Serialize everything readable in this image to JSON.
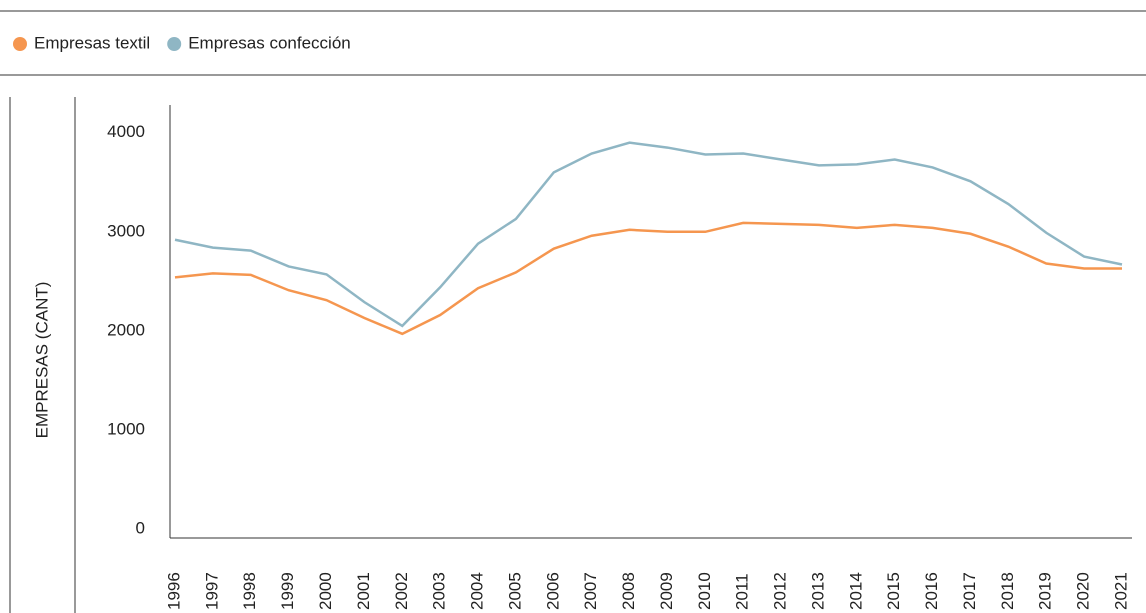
{
  "chart_data": {
    "type": "line",
    "y_label": "EMPRESAS (CANT)",
    "x": [
      "1996",
      "1997",
      "1998",
      "1999",
      "2000",
      "2001",
      "2002",
      "2003",
      "2004",
      "2005",
      "2006",
      "2007",
      "2008",
      "2009",
      "2010",
      "2011",
      "2012",
      "2013",
      "2014",
      "2015",
      "2016",
      "2017",
      "2018",
      "2019",
      "2020",
      "2021"
    ],
    "series": [
      {
        "name": "Empresas textil",
        "color": "#f5964f",
        "values": [
          2540,
          2580,
          2565,
          2410,
          2310,
          2130,
          1970,
          2160,
          2430,
          2590,
          2830,
          2960,
          3020,
          3000,
          3000,
          3090,
          3080,
          3070,
          3040,
          3070,
          3040,
          2980,
          2850,
          2680,
          2630,
          2630
        ]
      },
      {
        "name": "Empresas confección",
        "color": "#8fb6c4",
        "values": [
          2920,
          2840,
          2810,
          2650,
          2570,
          2290,
          2050,
          2440,
          2880,
          3130,
          3600,
          3790,
          3900,
          3850,
          3780,
          3790,
          3730,
          3670,
          3680,
          3730,
          3650,
          3510,
          3280,
          2990,
          2750,
          2670
        ]
      }
    ],
    "ylim": [
      0,
      4300
    ],
    "yticks": [
      0,
      1000,
      2000,
      3000,
      4000
    ]
  }
}
